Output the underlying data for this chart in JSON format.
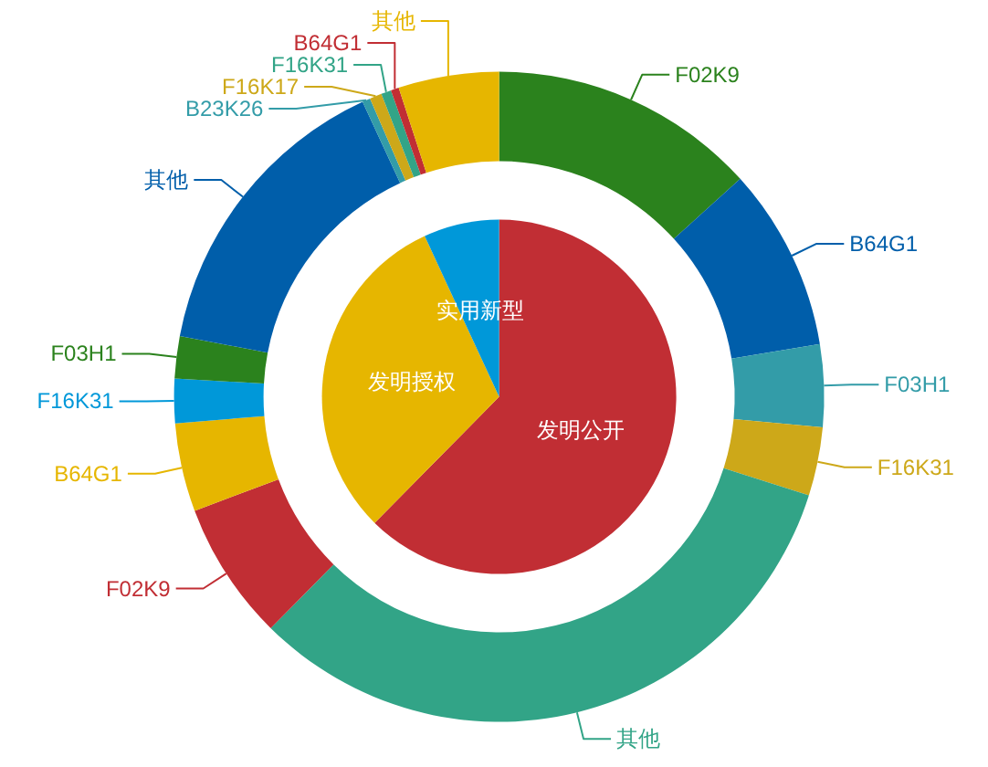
{
  "chart_data": [
    {
      "type": "pie",
      "categories": [
        "发明公开",
        "发明授权",
        "实用新型"
      ],
      "values": [
        62.4,
        30.7,
        6.9
      ],
      "colors": [
        "#c12e34",
        "#e6b600",
        "#0098d9"
      ]
    },
    {
      "type": "donut",
      "categories": [
        "F02K9",
        "B64G1",
        "F03H1",
        "F16K31",
        "其他",
        "F02K9",
        "B64G1",
        "F16K31",
        "F03H1",
        "其他",
        "B23K26",
        "F16K17",
        "F16K31",
        "B64G1",
        "其他"
      ],
      "values": [
        13.3,
        9.1,
        4.1,
        3.4,
        32.5,
        6.9,
        4.4,
        2.2,
        2.1,
        15.1,
        0.4,
        0.6,
        0.5,
        0.4,
        5.0
      ],
      "colors": [
        "#2b821d",
        "#005eaa",
        "#339ca8",
        "#cda819",
        "#32a487",
        "#c12e34",
        "#e6b600",
        "#0098d9",
        "#2b821d",
        "#005eaa",
        "#339ca8",
        "#cda819",
        "#32a487",
        "#c12e34",
        "#e6b600"
      ]
    }
  ]
}
